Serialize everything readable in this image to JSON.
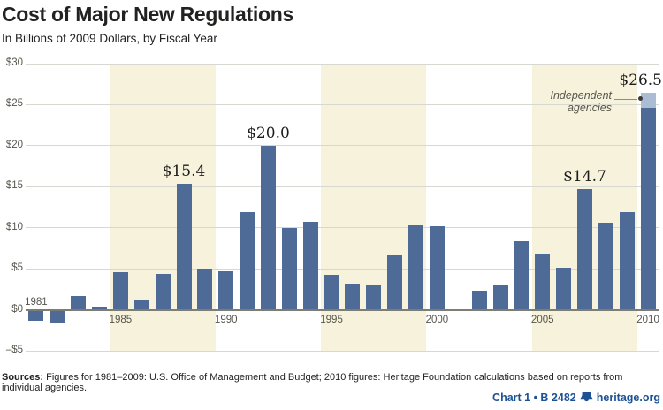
{
  "chart_data": {
    "type": "bar",
    "title": "Cost of Major New Regulations",
    "subtitle": "In Billions of 2009 Dollars, by Fiscal Year",
    "unit": "billions of 2009 dollars",
    "ylim": [
      -5,
      30
    ],
    "grid": true,
    "yticks": [
      {
        "label": "$30",
        "value": 30
      },
      {
        "label": "$25",
        "value": 25
      },
      {
        "label": "$20",
        "value": 20
      },
      {
        "label": "$15",
        "value": 15
      },
      {
        "label": "$10",
        "value": 10
      },
      {
        "label": "$5",
        "value": 5
      },
      {
        "label": "$0",
        "value": 0
      },
      {
        "label": "–$5",
        "value": -5
      }
    ],
    "years": [
      1981,
      1982,
      1983,
      1984,
      1985,
      1986,
      1987,
      1988,
      1989,
      1990,
      1991,
      1992,
      1993,
      1994,
      1995,
      1996,
      1997,
      1998,
      1999,
      2000,
      2001,
      2002,
      2003,
      2004,
      2005,
      2006,
      2007,
      2008,
      2009,
      2010
    ],
    "values": [
      -1.2,
      -1.5,
      1.7,
      0.4,
      4.6,
      1.2,
      4.4,
      15.4,
      5.0,
      4.7,
      11.9,
      20.0,
      10.0,
      10.7,
      4.3,
      3.2,
      3.0,
      6.6,
      10.3,
      10.2,
      0,
      2.3,
      3.0,
      8.4,
      6.9,
      5.1,
      14.7,
      10.6,
      11.9,
      26.5
    ],
    "stacked_top_segment": {
      "year": 2010,
      "name": "Independent agencies",
      "value": 1.9
    },
    "callouts": [
      {
        "year": 1988,
        "label": "$15.4"
      },
      {
        "year": 1992,
        "label": "$20.0"
      },
      {
        "year": 2007,
        "label": "$14.7"
      },
      {
        "year": 2010,
        "label": "$26.5"
      }
    ],
    "annotation": {
      "line1": "Independent",
      "line2": "agencies"
    },
    "shaded_year_bands": [
      [
        1985,
        1989
      ],
      [
        1995,
        1999
      ],
      [
        2005,
        2009
      ]
    ],
    "x_axis_labels": [
      {
        "year": 1981,
        "position": "above-axis"
      },
      {
        "year": 1985,
        "position": "below-axis"
      },
      {
        "year": 1990,
        "position": "below-axis"
      },
      {
        "year": 1995,
        "position": "below-axis"
      },
      {
        "year": 2000,
        "position": "below-axis"
      },
      {
        "year": 2005,
        "position": "below-axis"
      },
      {
        "year": 2010,
        "position": "below-axis"
      }
    ]
  },
  "colors": {
    "bar": "#4e6b97",
    "bar_light_segment": "#abbdd5",
    "highlight_band": "#f7f2db",
    "gridline": "#d8d8d2",
    "axis": "#7d7d74",
    "tick_label": "#56564e",
    "callout_text": "#1c1c1c",
    "annotation_text": "#55554d",
    "brand_blue": "#1c5294"
  },
  "footer": {
    "sources_label": "Sources:",
    "sources_text": "Figures for 1981–2009: U.S. Office of Management and Budget; 2010 figures: Heritage Foundation calculations based on reports from individual agencies.",
    "chart_number": "Chart 1 • B 2482",
    "site": "heritage.org"
  }
}
